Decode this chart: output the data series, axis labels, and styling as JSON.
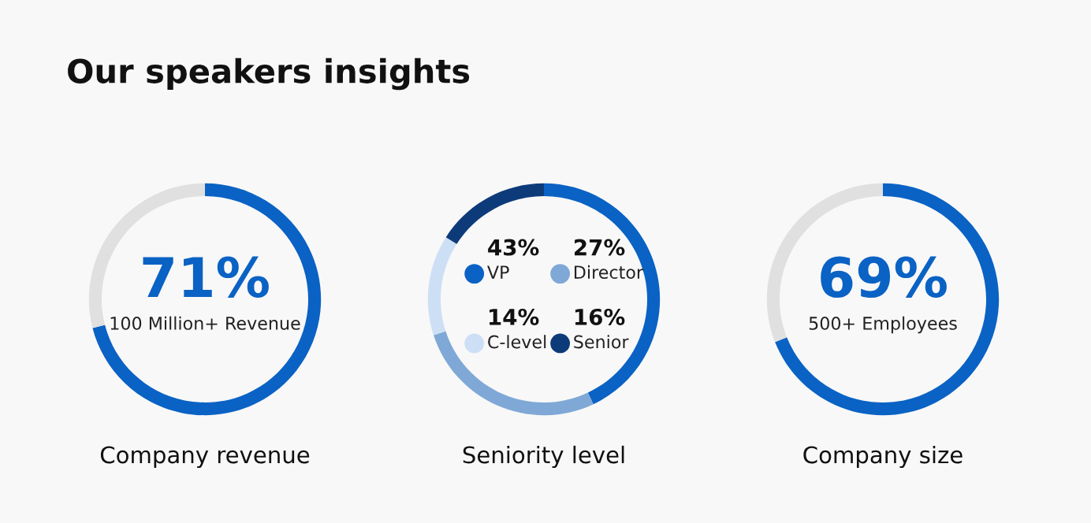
{
  "chart_data": [
    {
      "type": "donut",
      "annotations": [
        "Our speakers insights"
      ],
      "xlabel": "Company revenue",
      "categories": [
        "100 Million+ Revenue",
        null
      ],
      "values": [
        71,
        29
      ],
      "colors": [
        "#0a62c4",
        "#e0e0e0"
      ],
      "value_labels": [
        "71%",
        null
      ],
      "legend": false
    },
    {
      "type": "donut",
      "xlabel": "Seniority level",
      "categories": [
        "VP",
        "Director",
        "C-level",
        "Senior"
      ],
      "values": [
        43,
        27,
        14,
        16
      ],
      "colors": [
        "#0a62c4",
        "#7fa8d6",
        "#cddff5",
        "#0d3b7a"
      ],
      "value_labels": [
        "43%",
        "27%",
        "14%",
        "16%"
      ],
      "legend": "center"
    },
    {
      "type": "donut",
      "xlabel": "Company size",
      "categories": [
        "500+ Employees",
        null
      ],
      "values": [
        69,
        31
      ],
      "colors": [
        "#0a62c4",
        "#e0e0e0"
      ],
      "value_labels": [
        "69%",
        null
      ],
      "legend": false
    }
  ]
}
